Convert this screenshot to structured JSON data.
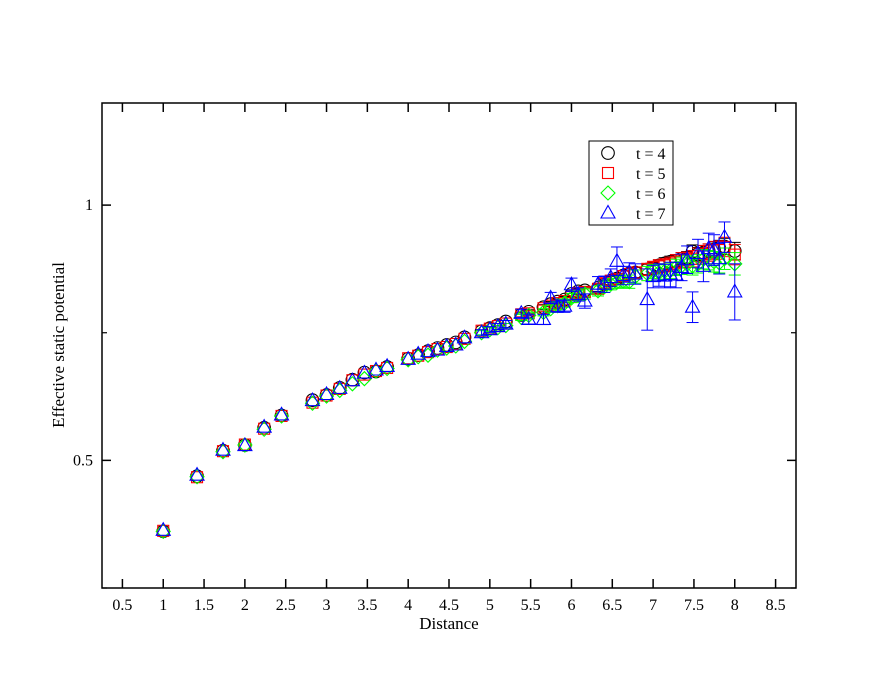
{
  "chart_data": {
    "type": "scatter",
    "title": "",
    "xlabel": "Distance",
    "ylabel": "Effective static potential",
    "xlim": [
      0.25,
      8.75
    ],
    "ylim": [
      0.25,
      1.2
    ],
    "xticks": [
      "0.5",
      "1",
      "1.5",
      "2",
      "2.5",
      "3",
      "3.5",
      "4",
      "4.5",
      "5",
      "5.5",
      "6",
      "6.5",
      "7",
      "7.5",
      "8",
      "8.5"
    ],
    "yticks": [
      "0.5",
      "1"
    ],
    "grid": false,
    "legend_position": "top-right",
    "error_bars": true,
    "series": [
      {
        "name": "t = 4",
        "marker": "circle",
        "color": "#000000",
        "points": [
          [
            1.0,
            0.361,
            0
          ],
          [
            1.414,
            0.469,
            0
          ],
          [
            1.732,
            0.519,
            0
          ],
          [
            2.0,
            0.53,
            0
          ],
          [
            2.236,
            0.564,
            0
          ],
          [
            2.449,
            0.588,
            0
          ],
          [
            2.828,
            0.618,
            0
          ],
          [
            3.0,
            0.628,
            0
          ],
          [
            3.162,
            0.642,
            0
          ],
          [
            3.317,
            0.658,
            0
          ],
          [
            3.464,
            0.672,
            0
          ],
          [
            3.606,
            0.674,
            0
          ],
          [
            3.742,
            0.683,
            0
          ],
          [
            4.0,
            0.699,
            0
          ],
          [
            4.123,
            0.706,
            0
          ],
          [
            4.243,
            0.714,
            0
          ],
          [
            4.359,
            0.72,
            0
          ],
          [
            4.472,
            0.726,
            0
          ],
          [
            4.583,
            0.731,
            0
          ],
          [
            4.69,
            0.741,
            0
          ],
          [
            4.899,
            0.753,
            0
          ],
          [
            5.0,
            0.759,
            0
          ],
          [
            5.099,
            0.765,
            0
          ],
          [
            5.196,
            0.772,
            0
          ],
          [
            5.385,
            0.785,
            0.004
          ],
          [
            5.477,
            0.791,
            0.004
          ],
          [
            5.657,
            0.8,
            0.005
          ],
          [
            5.745,
            0.806,
            0.005
          ],
          [
            5.831,
            0.811,
            0.005
          ],
          [
            5.916,
            0.815,
            0.006
          ],
          [
            6.0,
            0.826,
            0.006
          ],
          [
            6.083,
            0.831,
            0.006
          ],
          [
            6.164,
            0.833,
            0.007
          ],
          [
            6.325,
            0.838,
            0.007
          ],
          [
            6.403,
            0.845,
            0.008
          ],
          [
            6.481,
            0.852,
            0.008
          ],
          [
            6.557,
            0.856,
            0.008
          ],
          [
            6.633,
            0.862,
            0.009
          ],
          [
            6.708,
            0.866,
            0.009
          ],
          [
            6.782,
            0.868,
            0.01
          ],
          [
            6.928,
            0.874,
            0.01
          ],
          [
            7.0,
            0.877,
            0.01
          ],
          [
            7.071,
            0.882,
            0.011
          ],
          [
            7.141,
            0.886,
            0.011
          ],
          [
            7.211,
            0.889,
            0.011
          ],
          [
            7.28,
            0.891,
            0.012
          ],
          [
            7.348,
            0.895,
            0.012
          ],
          [
            7.416,
            0.897,
            0.012
          ],
          [
            7.483,
            0.909,
            0.013
          ],
          [
            7.55,
            0.904,
            0.013
          ],
          [
            7.616,
            0.907,
            0.014
          ],
          [
            7.681,
            0.91,
            0.014
          ],
          [
            7.746,
            0.913,
            0.015
          ],
          [
            7.81,
            0.916,
            0.015
          ],
          [
            7.874,
            0.919,
            0.016
          ],
          [
            8.0,
            0.91,
            0.017
          ]
        ]
      },
      {
        "name": "t = 5",
        "marker": "square",
        "color": "#ff0000",
        "points": [
          [
            1.0,
            0.362,
            0
          ],
          [
            1.414,
            0.467,
            0
          ],
          [
            1.732,
            0.518,
            0
          ],
          [
            2.0,
            0.531,
            0
          ],
          [
            2.236,
            0.562,
            0
          ],
          [
            2.449,
            0.587,
            0
          ],
          [
            2.828,
            0.613,
            0
          ],
          [
            3.0,
            0.627,
            0
          ],
          [
            3.162,
            0.64,
            0
          ],
          [
            3.317,
            0.657,
            0
          ],
          [
            3.464,
            0.668,
            0
          ],
          [
            3.606,
            0.675,
            0
          ],
          [
            3.742,
            0.681,
            0
          ],
          [
            4.0,
            0.7,
            0
          ],
          [
            4.123,
            0.705,
            0
          ],
          [
            4.243,
            0.712,
            0
          ],
          [
            4.359,
            0.718,
            0
          ],
          [
            4.472,
            0.722,
            0
          ],
          [
            4.583,
            0.728,
            0
          ],
          [
            4.69,
            0.738,
            0
          ],
          [
            4.899,
            0.754,
            0
          ],
          [
            5.0,
            0.758,
            0
          ],
          [
            5.099,
            0.763,
            0
          ],
          [
            5.196,
            0.768,
            0
          ],
          [
            5.385,
            0.786,
            0.005
          ],
          [
            5.477,
            0.788,
            0.005
          ],
          [
            5.657,
            0.798,
            0.006
          ],
          [
            5.745,
            0.803,
            0.006
          ],
          [
            5.831,
            0.808,
            0.006
          ],
          [
            5.916,
            0.812,
            0.007
          ],
          [
            6.0,
            0.82,
            0.007
          ],
          [
            6.083,
            0.828,
            0.007
          ],
          [
            6.164,
            0.83,
            0.008
          ],
          [
            6.325,
            0.836,
            0.008
          ],
          [
            6.403,
            0.847,
            0.009
          ],
          [
            6.481,
            0.852,
            0.009
          ],
          [
            6.557,
            0.855,
            0.01
          ],
          [
            6.633,
            0.861,
            0.01
          ],
          [
            6.708,
            0.865,
            0.011
          ],
          [
            6.782,
            0.868,
            0.011
          ],
          [
            6.928,
            0.874,
            0.012
          ],
          [
            7.0,
            0.878,
            0.012
          ],
          [
            7.071,
            0.88,
            0.013
          ],
          [
            7.141,
            0.882,
            0.013
          ],
          [
            7.211,
            0.884,
            0.014
          ],
          [
            7.28,
            0.889,
            0.014
          ],
          [
            7.348,
            0.892,
            0.015
          ],
          [
            7.416,
            0.893,
            0.015
          ],
          [
            7.483,
            0.895,
            0.016
          ],
          [
            7.55,
            0.9,
            0.016
          ],
          [
            7.616,
            0.904,
            0.017
          ],
          [
            7.681,
            0.907,
            0.017
          ],
          [
            7.746,
            0.911,
            0.018
          ],
          [
            7.81,
            0.912,
            0.018
          ],
          [
            7.874,
            0.918,
            0.019
          ],
          [
            8.0,
            0.903,
            0.02
          ]
        ]
      },
      {
        "name": "t = 6",
        "marker": "diamond",
        "color": "#00ff00",
        "points": [
          [
            1.0,
            0.361,
            0
          ],
          [
            1.414,
            0.468,
            0
          ],
          [
            1.732,
            0.517,
            0
          ],
          [
            2.0,
            0.53,
            0
          ],
          [
            2.236,
            0.561,
            0
          ],
          [
            2.449,
            0.587,
            0
          ],
          [
            2.828,
            0.612,
            0
          ],
          [
            3.0,
            0.626,
            0
          ],
          [
            3.162,
            0.637,
            0
          ],
          [
            3.317,
            0.65,
            0
          ],
          [
            3.464,
            0.66,
            0
          ],
          [
            3.606,
            0.675,
            0
          ],
          [
            3.742,
            0.68,
            0
          ],
          [
            4.0,
            0.697,
            0
          ],
          [
            4.123,
            0.703,
            0
          ],
          [
            4.243,
            0.706,
            0
          ],
          [
            4.359,
            0.716,
            0
          ],
          [
            4.472,
            0.72,
            0
          ],
          [
            4.583,
            0.724,
            0
          ],
          [
            4.69,
            0.733,
            0
          ],
          [
            4.899,
            0.75,
            0.004
          ],
          [
            5.0,
            0.756,
            0.004
          ],
          [
            5.099,
            0.76,
            0.004
          ],
          [
            5.196,
            0.764,
            0.004
          ],
          [
            5.385,
            0.78,
            0.006
          ],
          [
            5.477,
            0.784,
            0.006
          ],
          [
            5.657,
            0.79,
            0.007
          ],
          [
            5.745,
            0.797,
            0.007
          ],
          [
            5.831,
            0.803,
            0.008
          ],
          [
            5.916,
            0.808,
            0.008
          ],
          [
            6.0,
            0.818,
            0.009
          ],
          [
            6.083,
            0.823,
            0.009
          ],
          [
            6.164,
            0.826,
            0.01
          ],
          [
            6.325,
            0.832,
            0.01
          ],
          [
            6.403,
            0.84,
            0.011
          ],
          [
            6.481,
            0.845,
            0.011
          ],
          [
            6.557,
            0.849,
            0.012
          ],
          [
            6.633,
            0.851,
            0.012
          ],
          [
            6.708,
            0.85,
            0.013
          ],
          [
            6.782,
            0.86,
            0.013
          ],
          [
            6.928,
            0.866,
            0.014
          ],
          [
            7.0,
            0.87,
            0.014
          ],
          [
            7.071,
            0.868,
            0.015
          ],
          [
            7.141,
            0.87,
            0.015
          ],
          [
            7.211,
            0.872,
            0.016
          ],
          [
            7.28,
            0.878,
            0.016
          ],
          [
            7.348,
            0.881,
            0.017
          ],
          [
            7.416,
            0.884,
            0.017
          ],
          [
            7.483,
            0.881,
            0.018
          ],
          [
            7.55,
            0.885,
            0.018
          ],
          [
            7.616,
            0.894,
            0.019
          ],
          [
            7.681,
            0.892,
            0.019
          ],
          [
            7.746,
            0.889,
            0.02
          ],
          [
            7.81,
            0.887,
            0.02
          ],
          [
            7.874,
            0.895,
            0.021
          ],
          [
            8.0,
            0.885,
            0.022
          ]
        ]
      },
      {
        "name": "t = 7",
        "marker": "triangle",
        "color": "#0000ff",
        "points": [
          [
            1.0,
            0.363,
            0
          ],
          [
            1.414,
            0.471,
            0
          ],
          [
            1.732,
            0.52,
            0
          ],
          [
            2.0,
            0.529,
            0
          ],
          [
            2.236,
            0.565,
            0
          ],
          [
            2.449,
            0.589,
            0
          ],
          [
            2.828,
            0.617,
            0
          ],
          [
            3.0,
            0.629,
            0
          ],
          [
            3.162,
            0.641,
            0
          ],
          [
            3.317,
            0.656,
            0
          ],
          [
            3.464,
            0.671,
            0
          ],
          [
            3.606,
            0.677,
            0
          ],
          [
            3.742,
            0.684,
            0
          ],
          [
            4.0,
            0.698,
            0
          ],
          [
            4.123,
            0.708,
            0
          ],
          [
            4.243,
            0.713,
            0
          ],
          [
            4.359,
            0.716,
            0
          ],
          [
            4.472,
            0.723,
            0
          ],
          [
            4.583,
            0.726,
            0
          ],
          [
            4.69,
            0.74,
            0
          ],
          [
            4.899,
            0.75,
            0.006
          ],
          [
            5.0,
            0.756,
            0.006
          ],
          [
            5.099,
            0.762,
            0.006
          ],
          [
            5.196,
            0.767,
            0.007
          ],
          [
            5.385,
            0.788,
            0.008
          ],
          [
            5.477,
            0.776,
            0.009
          ],
          [
            5.657,
            0.776,
            0.01
          ],
          [
            5.745,
            0.818,
            0.011
          ],
          [
            5.831,
            0.801,
            0.011
          ],
          [
            5.916,
            0.802,
            0.012
          ],
          [
            6.0,
            0.844,
            0.013
          ],
          [
            6.083,
            0.825,
            0.013
          ],
          [
            6.164,
            0.812,
            0.014
          ],
          [
            6.325,
            0.845,
            0.015
          ],
          [
            6.403,
            0.845,
            0.016
          ],
          [
            6.481,
            0.858,
            0.017
          ],
          [
            6.557,
            0.89,
            0.028
          ],
          [
            6.633,
            0.862,
            0.018
          ],
          [
            6.708,
            0.868,
            0.019
          ],
          [
            6.782,
            0.865,
            0.02
          ],
          [
            6.928,
            0.815,
            0.06
          ],
          [
            7.0,
            0.86,
            0.022
          ],
          [
            7.071,
            0.863,
            0.022
          ],
          [
            7.141,
            0.861,
            0.023
          ],
          [
            7.211,
            0.864,
            0.024
          ],
          [
            7.28,
            0.863,
            0.025
          ],
          [
            7.348,
            0.878,
            0.026
          ],
          [
            7.416,
            0.893,
            0.027
          ],
          [
            7.483,
            0.8,
            0.03
          ],
          [
            7.55,
            0.905,
            0.028
          ],
          [
            7.616,
            0.88,
            0.03
          ],
          [
            7.681,
            0.915,
            0.03
          ],
          [
            7.746,
            0.912,
            0.03
          ],
          [
            7.81,
            0.895,
            0.03
          ],
          [
            7.874,
            0.937,
            0.03
          ],
          [
            8.0,
            0.83,
            0.055
          ]
        ]
      }
    ]
  }
}
